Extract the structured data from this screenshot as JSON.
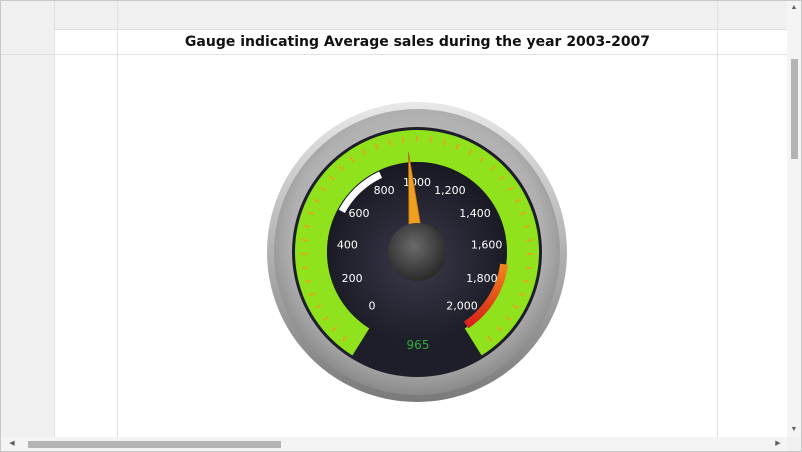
{
  "grid": {
    "title": "Gauge indicating Average sales during the year 2003-2007"
  },
  "gauge": {
    "value": 965,
    "value_text": "965",
    "min": 0,
    "max": 2000,
    "tick_labels": [
      "0",
      "200",
      "400",
      "600",
      "800",
      "1000",
      "1,200",
      "1,400",
      "1,600",
      "1,800",
      "2,000"
    ],
    "ranges": [
      {
        "from": 1700,
        "to": 2000,
        "colors": [
          "#e8651c",
          "#d81b1b"
        ]
      }
    ],
    "colors": {
      "band": "#8fe21c",
      "face": "#1c1c2a",
      "needle": "#f0a020",
      "value_text": "#2fae3c",
      "bezel": "#a8a8a8"
    }
  },
  "scrollbars": {
    "up_icon": "scroll-up-arrow-icon",
    "down_icon": "scroll-down-arrow-icon",
    "left_icon": "scroll-left-arrow-icon",
    "right_icon": "scroll-right-arrow-icon"
  }
}
